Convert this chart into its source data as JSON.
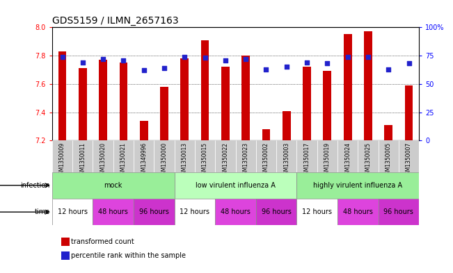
{
  "title": "GDS5159 / ILMN_2657163",
  "samples": [
    "GSM1350009",
    "GSM1350011",
    "GSM1350020",
    "GSM1350021",
    "GSM1349996",
    "GSM1350000",
    "GSM1350013",
    "GSM1350015",
    "GSM1350022",
    "GSM1350023",
    "GSM1350002",
    "GSM1350003",
    "GSM1350017",
    "GSM1350019",
    "GSM1350024",
    "GSM1350025",
    "GSM1350005",
    "GSM1350007"
  ],
  "transformed_count": [
    7.83,
    7.71,
    7.77,
    7.75,
    7.34,
    7.58,
    7.78,
    7.91,
    7.72,
    7.8,
    7.28,
    7.41,
    7.72,
    7.69,
    7.95,
    7.97,
    7.31,
    7.59
  ],
  "percentile_rank": [
    74,
    69,
    72,
    71,
    62,
    64,
    74,
    73,
    71,
    72,
    63,
    65,
    69,
    68,
    74,
    74,
    63,
    68
  ],
  "ylim_left": [
    7.2,
    8.0
  ],
  "ylim_right": [
    0,
    100
  ],
  "yticks_left": [
    7.2,
    7.4,
    7.6,
    7.8,
    8.0
  ],
  "yticks_right": [
    0,
    25,
    50,
    75,
    100
  ],
  "ytick_right_labels": [
    "0",
    "25",
    "50",
    "75",
    "100%"
  ],
  "bar_color": "#cc0000",
  "dot_color": "#2222cc",
  "bar_bottom": 7.2,
  "bar_width": 0.4,
  "infection_groups": [
    {
      "label": "mock",
      "start": 0,
      "end": 6,
      "color": "#99ee99"
    },
    {
      "label": "low virulent influenza A",
      "start": 6,
      "end": 12,
      "color": "#bbffbb"
    },
    {
      "label": "highly virulent influenza A",
      "start": 12,
      "end": 18,
      "color": "#99ee99"
    }
  ],
  "time_groups": [
    {
      "label": "12 hours",
      "start": 0,
      "end": 2,
      "color": "#ffffff"
    },
    {
      "label": "48 hours",
      "start": 2,
      "end": 4,
      "color": "#dd44dd"
    },
    {
      "label": "96 hours",
      "start": 4,
      "end": 6,
      "color": "#cc33cc"
    },
    {
      "label": "12 hours",
      "start": 6,
      "end": 8,
      "color": "#ffffff"
    },
    {
      "label": "48 hours",
      "start": 8,
      "end": 10,
      "color": "#dd44dd"
    },
    {
      "label": "96 hours",
      "start": 10,
      "end": 12,
      "color": "#cc33cc"
    },
    {
      "label": "12 hours",
      "start": 12,
      "end": 14,
      "color": "#ffffff"
    },
    {
      "label": "48 hours",
      "start": 14,
      "end": 16,
      "color": "#dd44dd"
    },
    {
      "label": "96 hours",
      "start": 16,
      "end": 18,
      "color": "#cc33cc"
    }
  ],
  "sample_bg_color": "#cccccc",
  "infection_label": "infection",
  "time_label": "time",
  "legend_bar_label": "transformed count",
  "legend_dot_label": "percentile rank within the sample",
  "background_color": "#ffffff",
  "title_fontsize": 10,
  "tick_fontsize": 7,
  "sample_fontsize": 5.5,
  "annotation_fontsize": 7,
  "grid_yticks": [
    7.4,
    7.6,
    7.8
  ]
}
